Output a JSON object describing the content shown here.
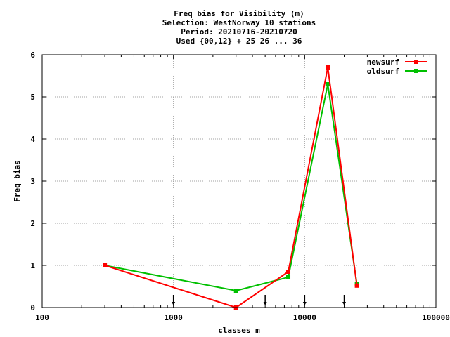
{
  "chart_data": {
    "type": "line",
    "title_lines": [
      "Freq bias  for Visibility (m)",
      "Selection: WestNorway     10 stations",
      "Period: 20210716-20210720",
      "Used {00,12} + 25 26 ... 36"
    ],
    "xlabel": "classes m",
    "ylabel": "Freq bias",
    "x_scale": "log",
    "xlim": [
      100,
      100000
    ],
    "ylim": [
      0,
      6
    ],
    "x_ticks": [
      100,
      1000,
      10000,
      100000
    ],
    "x_tick_labels": [
      "100",
      "1000",
      "10000",
      "100000"
    ],
    "y_ticks": [
      0,
      1,
      2,
      3,
      4,
      5,
      6
    ],
    "y_tick_labels": [
      "0",
      "1",
      "2",
      "3",
      "4",
      "5",
      "6"
    ],
    "grid": true,
    "legend_position": "top-right",
    "arrow_markers_x": [
      1000,
      5000,
      10000,
      20000
    ],
    "series": [
      {
        "name": "newsurf",
        "color": "#ff0000",
        "x": [
          300,
          3000,
          7500,
          15000,
          25000
        ],
        "y": [
          1.0,
          0.0,
          0.85,
          5.7,
          0.52
        ]
      },
      {
        "name": "oldsurf",
        "color": "#00c000",
        "x": [
          300,
          3000,
          7500,
          15000,
          25000
        ],
        "y": [
          1.0,
          0.4,
          0.72,
          5.3,
          0.55
        ]
      }
    ]
  }
}
